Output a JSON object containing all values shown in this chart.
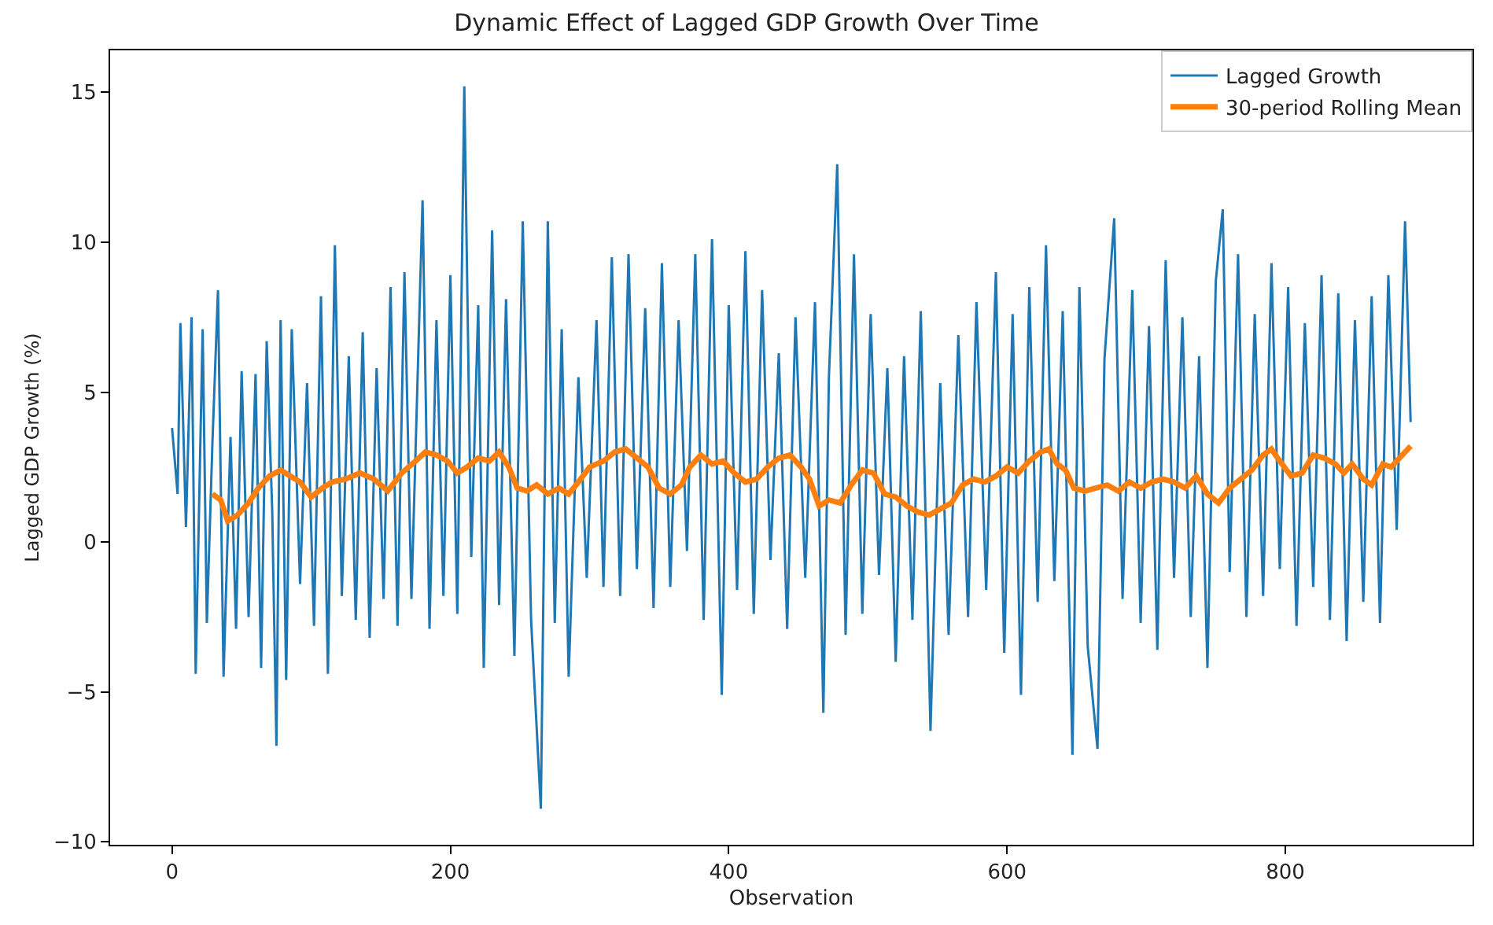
{
  "chart_data": {
    "type": "line",
    "title": "Dynamic Effect of Lagged GDP Growth Over Time",
    "xlabel": "Observation",
    "ylabel": "Lagged GDP Growth (%)",
    "xlim": [
      -44.5,
      934.5
    ],
    "ylim": [
      -10.1,
      16.4
    ],
    "xticks": [
      0,
      200,
      400,
      600,
      800
    ],
    "yticks": [
      {
        "value": -10,
        "label": "−10"
      },
      {
        "value": -5,
        "label": "−5"
      },
      0,
      5,
      10,
      15
    ],
    "legend": "top right",
    "marker": "none",
    "line_style": "solid",
    "series": [
      {
        "name": "Lagged Growth",
        "color": "#1f77b4",
        "x": [
          0,
          4,
          6,
          10,
          14,
          17,
          22,
          25,
          29,
          33,
          37,
          42,
          46,
          50,
          55,
          60,
          64,
          68,
          72,
          75,
          78,
          82,
          86,
          92,
          97,
          102,
          107,
          112,
          117,
          122,
          127,
          132,
          137,
          142,
          147,
          152,
          157,
          162,
          167,
          172,
          180,
          185,
          190,
          195,
          200,
          205,
          210,
          215,
          220,
          224,
          230,
          235,
          240,
          246,
          252,
          258,
          265,
          270,
          275,
          280,
          285,
          292,
          298,
          305,
          310,
          316,
          322,
          328,
          334,
          340,
          346,
          352,
          358,
          364,
          370,
          376,
          382,
          388,
          395,
          400,
          406,
          412,
          418,
          424,
          430,
          436,
          442,
          448,
          455,
          462,
          468,
          472,
          478,
          484,
          490,
          496,
          502,
          508,
          514,
          520,
          526,
          532,
          538,
          545,
          552,
          558,
          565,
          572,
          578,
          585,
          592,
          598,
          604,
          610,
          616,
          622,
          628,
          634,
          640,
          647,
          652,
          658,
          665,
          670,
          677,
          683,
          690,
          696,
          702,
          708,
          714,
          720,
          726,
          732,
          738,
          744,
          750,
          755,
          760,
          766,
          772,
          778,
          784,
          790,
          796,
          802,
          808,
          814,
          820,
          826,
          832,
          838,
          844,
          850,
          856,
          862,
          868,
          874,
          880,
          886,
          890
        ],
        "values": [
          3.8,
          1.6,
          7.3,
          0.5,
          7.5,
          -4.4,
          7.1,
          -2.7,
          3.3,
          8.4,
          -4.5,
          3.5,
          -2.9,
          5.7,
          -2.5,
          5.6,
          -4.2,
          6.7,
          1.0,
          -6.8,
          7.4,
          -4.6,
          7.1,
          -1.4,
          5.3,
          -2.8,
          8.2,
          -4.4,
          9.9,
          -1.8,
          6.2,
          -2.6,
          7.0,
          -3.2,
          5.8,
          -1.9,
          8.5,
          -2.8,
          9.0,
          -1.9,
          11.4,
          -2.9,
          7.4,
          -1.8,
          8.9,
          -2.4,
          15.2,
          -0.5,
          7.9,
          -4.2,
          10.4,
          -2.1,
          8.1,
          -3.8,
          10.7,
          -2.6,
          -8.9,
          10.7,
          -2.7,
          7.1,
          -4.5,
          5.5,
          -1.2,
          7.4,
          -1.5,
          9.5,
          -1.8,
          9.6,
          -0.9,
          7.8,
          -2.2,
          9.3,
          -1.5,
          7.4,
          -0.3,
          9.6,
          -2.6,
          10.1,
          -5.1,
          7.9,
          -1.6,
          9.7,
          -2.4,
          8.4,
          -0.6,
          6.3,
          -2.9,
          7.5,
          -1.2,
          8.0,
          -5.7,
          5.5,
          12.6,
          -3.1,
          9.6,
          -2.4,
          7.6,
          -1.1,
          5.8,
          -4.0,
          6.2,
          -2.6,
          7.7,
          -6.3,
          5.3,
          -3.1,
          6.9,
          -2.5,
          8.0,
          -1.6,
          9.0,
          -3.7,
          7.6,
          -5.1,
          8.5,
          -2.0,
          9.9,
          -1.3,
          7.7,
          -7.1,
          8.5,
          -3.5,
          -6.9,
          6.1,
          10.8,
          -1.9,
          8.4,
          -2.7,
          7.2,
          -3.6,
          9.4,
          -1.2,
          7.5,
          -2.5,
          6.2,
          -4.2,
          8.7,
          11.1,
          -1.0,
          9.6,
          -2.5,
          7.6,
          -1.8,
          9.3,
          -0.9,
          8.5,
          -2.8,
          7.3,
          -1.5,
          8.9,
          -2.6,
          8.3,
          -3.3,
          7.4,
          -2.0,
          8.2,
          -2.7,
          8.9,
          0.4,
          10.7,
          4.0
        ]
      },
      {
        "name": "30-period Rolling Mean",
        "color": "#ff7f0e",
        "x": [
          29,
          35,
          40,
          47,
          55,
          62,
          70,
          78,
          85,
          92,
          100,
          108,
          115,
          125,
          135,
          145,
          155,
          165,
          175,
          182,
          190,
          198,
          205,
          212,
          220,
          228,
          235,
          242,
          248,
          255,
          262,
          270,
          278,
          285,
          292,
          300,
          310,
          318,
          326,
          334,
          342,
          350,
          358,
          366,
          372,
          380,
          388,
          396,
          404,
          412,
          420,
          428,
          436,
          444,
          452,
          458,
          465,
          472,
          480,
          488,
          496,
          504,
          512,
          520,
          528,
          536,
          544,
          552,
          560,
          568,
          576,
          584,
          592,
          600,
          608,
          616,
          624,
          630,
          636,
          642,
          648,
          656,
          664,
          672,
          680,
          688,
          696,
          704,
          712,
          720,
          728,
          736,
          744,
          752,
          760,
          768,
          776,
          784,
          790,
          796,
          804,
          812,
          820,
          828,
          836,
          842,
          848,
          856,
          862,
          870,
          876,
          882,
          890
        ],
        "values": [
          1.6,
          1.4,
          0.7,
          0.9,
          1.3,
          1.8,
          2.2,
          2.4,
          2.2,
          2.0,
          1.5,
          1.8,
          2.0,
          2.1,
          2.3,
          2.1,
          1.7,
          2.3,
          2.7,
          3.0,
          2.9,
          2.7,
          2.3,
          2.5,
          2.8,
          2.7,
          3.0,
          2.5,
          1.8,
          1.7,
          1.9,
          1.6,
          1.8,
          1.6,
          2.0,
          2.5,
          2.7,
          3.0,
          3.1,
          2.8,
          2.5,
          1.8,
          1.6,
          1.9,
          2.5,
          2.9,
          2.6,
          2.7,
          2.3,
          2.0,
          2.1,
          2.5,
          2.8,
          2.9,
          2.5,
          2.1,
          1.2,
          1.4,
          1.3,
          1.9,
          2.4,
          2.3,
          1.6,
          1.5,
          1.2,
          1.0,
          0.9,
          1.1,
          1.3,
          1.9,
          2.1,
          2.0,
          2.2,
          2.5,
          2.3,
          2.7,
          3.0,
          3.1,
          2.6,
          2.4,
          1.8,
          1.7,
          1.8,
          1.9,
          1.7,
          2.0,
          1.8,
          2.0,
          2.1,
          2.0,
          1.8,
          2.2,
          1.6,
          1.3,
          1.8,
          2.1,
          2.4,
          2.9,
          3.1,
          2.7,
          2.2,
          2.3,
          2.9,
          2.8,
          2.6,
          2.3,
          2.6,
          2.1,
          1.9,
          2.6,
          2.5,
          2.8,
          3.2
        ]
      }
    ]
  }
}
